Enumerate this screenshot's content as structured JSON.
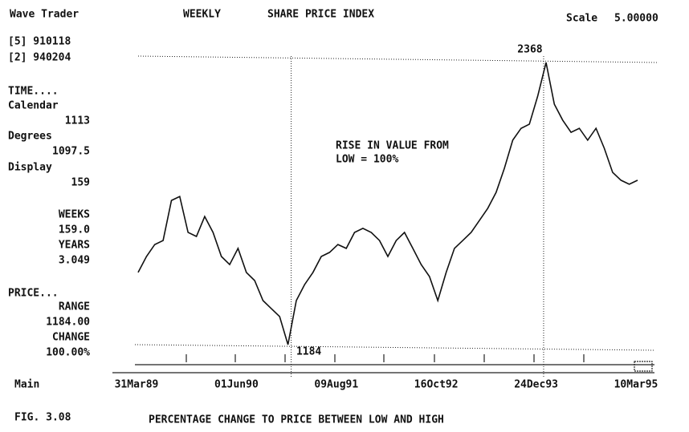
{
  "header": {
    "app": "Wave Trader",
    "period": "WEEKLY",
    "instrument": "SHARE PRICE INDEX",
    "scale_label": "Scale",
    "scale_value": "5.00000"
  },
  "panel": {
    "points": [
      "[5] 910118",
      "[2] 940204"
    ],
    "time_heading": "TIME....",
    "calendar_label": "Calendar",
    "calendar_value": "1113",
    "degrees_label": "Degrees",
    "degrees_value": "1097.5",
    "display_label": "Display",
    "display_value": "159",
    "weeks_label": "WEEKS",
    "weeks_value": "159.0",
    "years_label": "YEARS",
    "years_value": "3.049",
    "price_heading": "PRICE...",
    "range_label": "RANGE",
    "range_value": "1184.00",
    "change_label": "CHANGE",
    "change_value": "100.00%"
  },
  "footer": {
    "mode": "Main",
    "figure": "FIG.  3.08",
    "caption": "PERCENTAGE CHANGE TO PRICE BETWEEN LOW AND HIGH"
  },
  "chart_data": {
    "type": "line",
    "color": "#111111",
    "annotation": [
      "RISE IN VALUE FROM",
      "LOW = 100%"
    ],
    "categories": [
      "31Mar89",
      null,
      null,
      null,
      null,
      null,
      null,
      null,
      null,
      null,
      null,
      null,
      "01Jun90",
      null,
      null,
      null,
      null,
      null,
      null,
      null,
      null,
      null,
      null,
      null,
      "09Aug91",
      null,
      null,
      null,
      null,
      null,
      null,
      null,
      null,
      null,
      null,
      null,
      "16Oct92",
      null,
      null,
      null,
      null,
      null,
      null,
      null,
      null,
      null,
      null,
      null,
      "24Dec93",
      null,
      null,
      null,
      null,
      null,
      null,
      null,
      null,
      null,
      null,
      null,
      "10Mar95"
    ],
    "values": [
      1487,
      1554,
      1604,
      1621,
      1789,
      1806,
      1655,
      1638,
      1722,
      1655,
      1554,
      1520,
      1588,
      1487,
      1453,
      1369,
      1335,
      1302,
      1184,
      1369,
      1436,
      1487,
      1554,
      1571,
      1604,
      1588,
      1655,
      1672,
      1655,
      1621,
      1554,
      1621,
      1655,
      1588,
      1520,
      1470,
      1369,
      1487,
      1588,
      1621,
      1655,
      1705,
      1756,
      1823,
      1924,
      2042,
      2092,
      2109,
      2227,
      2368,
      2193,
      2126,
      2075,
      2092,
      2042,
      2092,
      2008,
      1907,
      1874,
      1857,
      1874
    ]
  }
}
